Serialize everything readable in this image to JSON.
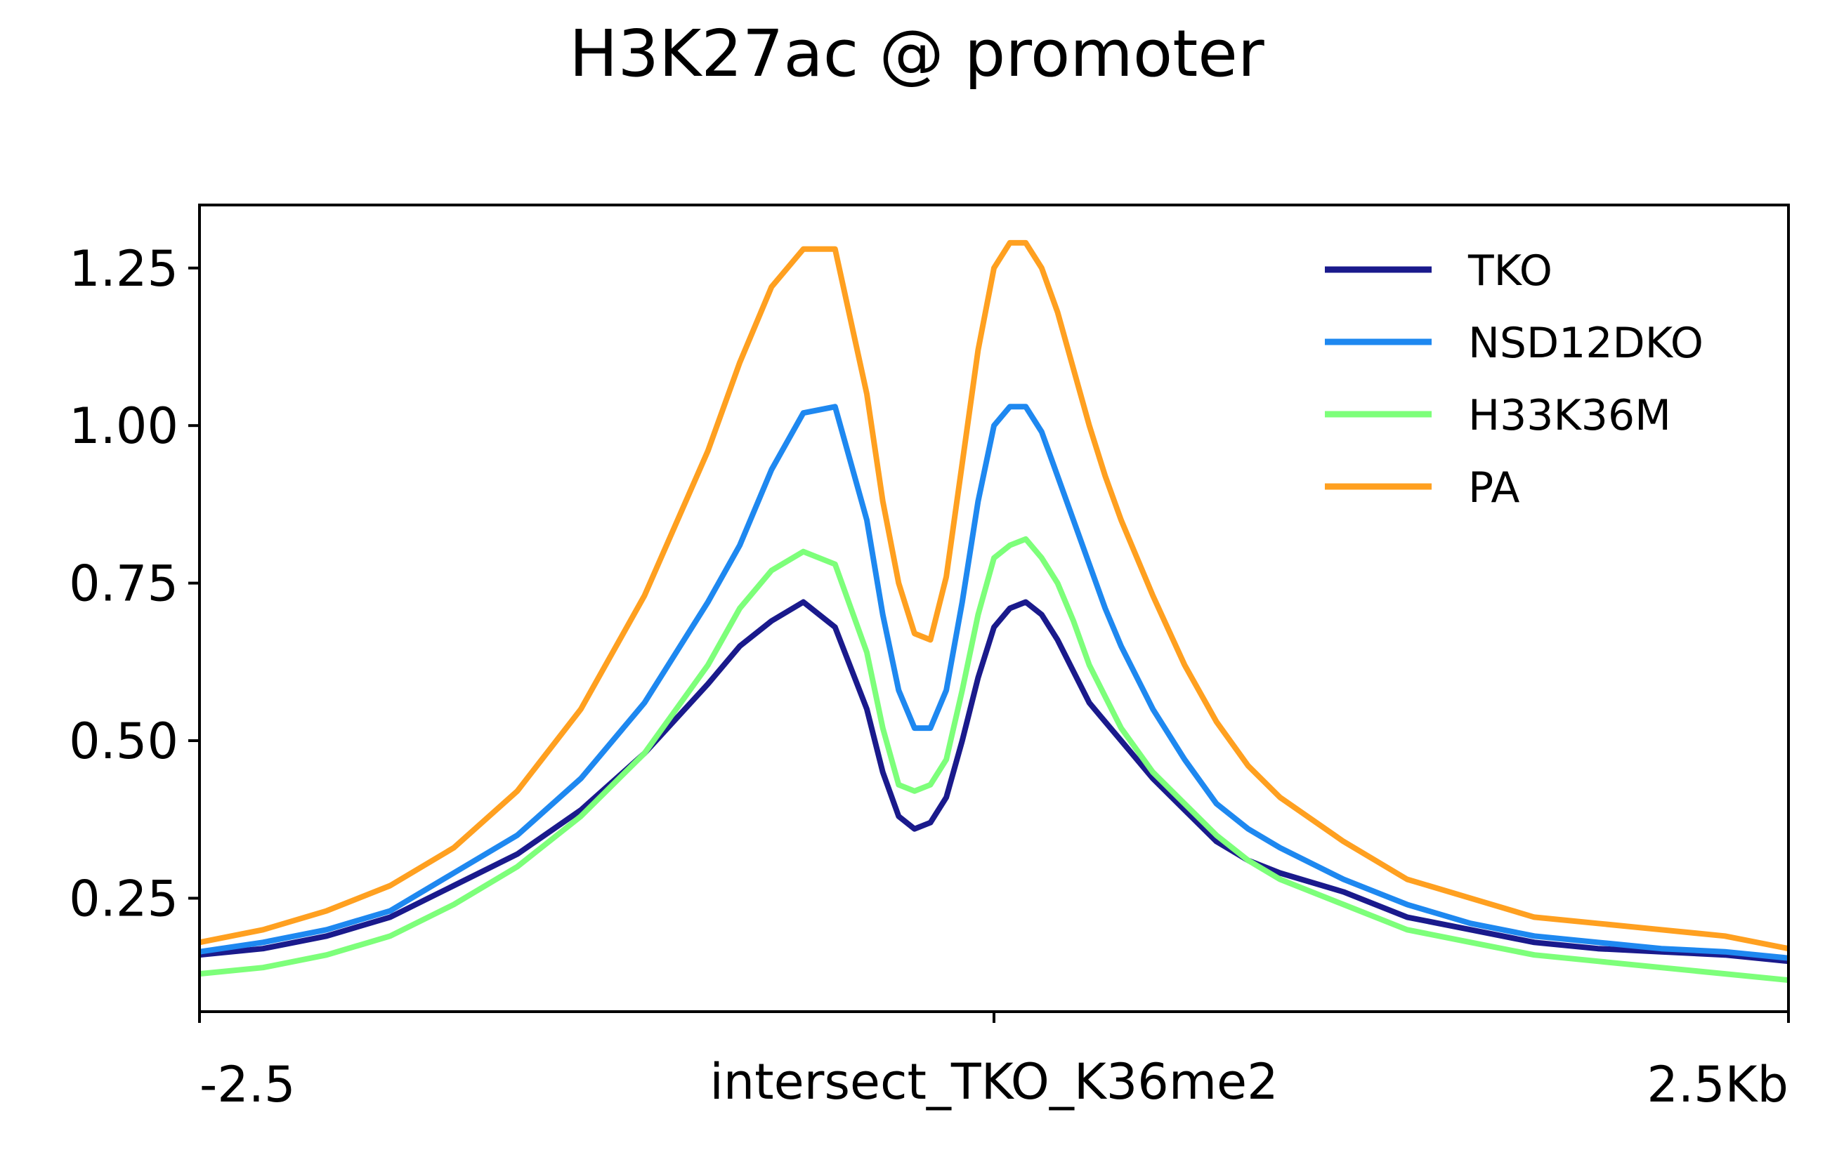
{
  "chart_data": {
    "type": "line",
    "title": "H3K27ac @ promoter",
    "xlabel": "intersect_TKO_K36me2",
    "ylabel": "",
    "x_tick_labels": [
      "-2.5",
      "",
      "2.5Kb"
    ],
    "x_tick_values": [
      -2.5,
      0,
      2.5
    ],
    "xlim": [
      -2.5,
      2.5
    ],
    "ylim": [
      0.07,
      1.35
    ],
    "y_ticks": [
      0.25,
      0.5,
      0.75,
      1.0,
      1.25
    ],
    "y_tick_labels": [
      "0.25",
      "0.50",
      "0.75",
      "1.00",
      "1.25"
    ],
    "grid": false,
    "legend_position": "top-right",
    "x": [
      -2.5,
      -2.3,
      -2.1,
      -1.9,
      -1.7,
      -1.5,
      -1.3,
      -1.1,
      -0.9,
      -0.8,
      -0.7,
      -0.6,
      -0.5,
      -0.4,
      -0.35,
      -0.3,
      -0.25,
      -0.2,
      -0.15,
      -0.1,
      -0.05,
      0.0,
      0.05,
      0.1,
      0.15,
      0.2,
      0.25,
      0.3,
      0.35,
      0.4,
      0.5,
      0.6,
      0.7,
      0.8,
      0.9,
      1.1,
      1.3,
      1.5,
      1.7,
      1.9,
      2.1,
      2.3,
      2.5
    ],
    "series": [
      {
        "name": "TKO",
        "color": "#1a1a8c",
        "values": [
          0.16,
          0.17,
          0.19,
          0.22,
          0.27,
          0.32,
          0.39,
          0.48,
          0.59,
          0.65,
          0.69,
          0.72,
          0.68,
          0.55,
          0.45,
          0.38,
          0.36,
          0.37,
          0.41,
          0.5,
          0.6,
          0.68,
          0.71,
          0.72,
          0.7,
          0.66,
          0.61,
          0.56,
          0.53,
          0.5,
          0.44,
          0.39,
          0.34,
          0.31,
          0.29,
          0.26,
          0.22,
          0.2,
          0.18,
          0.17,
          0.165,
          0.16,
          0.15
        ]
      },
      {
        "name": "NSD12DKO",
        "color": "#1e88f0",
        "values": [
          0.165,
          0.18,
          0.2,
          0.23,
          0.29,
          0.35,
          0.44,
          0.56,
          0.72,
          0.81,
          0.93,
          1.02,
          1.03,
          0.85,
          0.7,
          0.58,
          0.52,
          0.52,
          0.58,
          0.72,
          0.88,
          1.0,
          1.03,
          1.03,
          0.99,
          0.92,
          0.85,
          0.78,
          0.71,
          0.65,
          0.55,
          0.47,
          0.4,
          0.36,
          0.33,
          0.28,
          0.24,
          0.21,
          0.19,
          0.18,
          0.17,
          0.165,
          0.155
        ]
      },
      {
        "name": "H33K36M",
        "color": "#7dff7a",
        "values": [
          0.13,
          0.14,
          0.16,
          0.19,
          0.24,
          0.3,
          0.38,
          0.48,
          0.62,
          0.71,
          0.77,
          0.8,
          0.78,
          0.64,
          0.52,
          0.43,
          0.42,
          0.43,
          0.47,
          0.58,
          0.7,
          0.79,
          0.81,
          0.82,
          0.79,
          0.75,
          0.69,
          0.62,
          0.57,
          0.52,
          0.45,
          0.4,
          0.35,
          0.31,
          0.28,
          0.24,
          0.2,
          0.18,
          0.16,
          0.15,
          0.14,
          0.13,
          0.12
        ]
      },
      {
        "name": "PA",
        "color": "#ffa020",
        "values": [
          0.18,
          0.2,
          0.23,
          0.27,
          0.33,
          0.42,
          0.55,
          0.73,
          0.96,
          1.1,
          1.22,
          1.28,
          1.28,
          1.05,
          0.88,
          0.75,
          0.67,
          0.66,
          0.76,
          0.94,
          1.12,
          1.25,
          1.29,
          1.29,
          1.25,
          1.18,
          1.09,
          1.0,
          0.92,
          0.85,
          0.73,
          0.62,
          0.53,
          0.46,
          0.41,
          0.34,
          0.28,
          0.25,
          0.22,
          0.21,
          0.2,
          0.19,
          0.17
        ]
      }
    ]
  }
}
